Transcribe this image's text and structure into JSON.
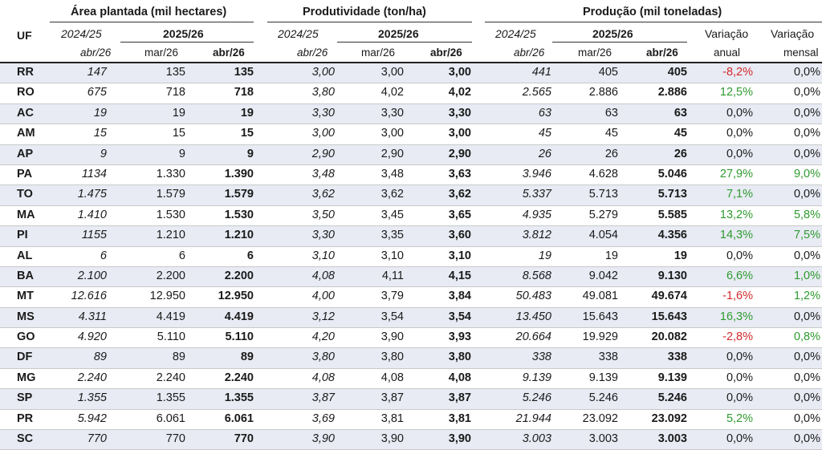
{
  "header": {
    "uf": "UF",
    "groups": {
      "area": "Área plantada (mil hectares)",
      "prod": "Produtividade (ton/ha)",
      "producao": "Produção (mil toneladas)"
    },
    "year_prev": "2024/25",
    "year_curr": "2025/26",
    "month_prev": "abr/26",
    "month_mar": "mar/26",
    "month_abr": "abr/26",
    "var_anual_1": "Variação",
    "var_anual_2": "anual",
    "var_mensal_1": "Variação",
    "var_mensal_2": "mensal"
  },
  "colors": {
    "negative": "#d22a2a",
    "positive": "#2e9a2e",
    "shade": "#e8ebf4"
  },
  "rows": [
    {
      "uf": "RR",
      "a1": "147",
      "a2": "135",
      "a3": "135",
      "p1": "3,00",
      "p2": "3,00",
      "p3": "3,00",
      "q1": "441",
      "q2": "405",
      "q3": "405",
      "va": "-8,2%",
      "vm": "0,0%",
      "vac": "neg",
      "vmc": ""
    },
    {
      "uf": "RO",
      "a1": "675",
      "a2": "718",
      "a3": "718",
      "p1": "3,80",
      "p2": "4,02",
      "p3": "4,02",
      "q1": "2.565",
      "q2": "2.886",
      "q3": "2.886",
      "va": "12,5%",
      "vm": "0,0%",
      "vac": "pos",
      "vmc": ""
    },
    {
      "uf": "AC",
      "a1": "19",
      "a2": "19",
      "a3": "19",
      "p1": "3,30",
      "p2": "3,30",
      "p3": "3,30",
      "q1": "63",
      "q2": "63",
      "q3": "63",
      "va": "0,0%",
      "vm": "0,0%",
      "vac": "",
      "vmc": ""
    },
    {
      "uf": "AM",
      "a1": "15",
      "a2": "15",
      "a3": "15",
      "p1": "3,00",
      "p2": "3,00",
      "p3": "3,00",
      "q1": "45",
      "q2": "45",
      "q3": "45",
      "va": "0,0%",
      "vm": "0,0%",
      "vac": "",
      "vmc": ""
    },
    {
      "uf": "AP",
      "a1": "9",
      "a2": "9",
      "a3": "9",
      "p1": "2,90",
      "p2": "2,90",
      "p3": "2,90",
      "q1": "26",
      "q2": "26",
      "q3": "26",
      "va": "0,0%",
      "vm": "0,0%",
      "vac": "",
      "vmc": ""
    },
    {
      "uf": "PA",
      "a1": "1134",
      "a2": "1.330",
      "a3": "1.390",
      "p1": "3,48",
      "p2": "3,48",
      "p3": "3,63",
      "q1": "3.946",
      "q2": "4.628",
      "q3": "5.046",
      "va": "27,9%",
      "vm": "9,0%",
      "vac": "pos",
      "vmc": "pos"
    },
    {
      "uf": "TO",
      "a1": "1.475",
      "a2": "1.579",
      "a3": "1.579",
      "p1": "3,62",
      "p2": "3,62",
      "p3": "3,62",
      "q1": "5.337",
      "q2": "5.713",
      "q3": "5.713",
      "va": "7,1%",
      "vm": "0,0%",
      "vac": "pos",
      "vmc": ""
    },
    {
      "uf": "MA",
      "a1": "1.410",
      "a2": "1.530",
      "a3": "1.530",
      "p1": "3,50",
      "p2": "3,45",
      "p3": "3,65",
      "q1": "4.935",
      "q2": "5.279",
      "q3": "5.585",
      "va": "13,2%",
      "vm": "5,8%",
      "vac": "pos",
      "vmc": "pos"
    },
    {
      "uf": "PI",
      "a1": "1155",
      "a2": "1.210",
      "a3": "1.210",
      "p1": "3,30",
      "p2": "3,35",
      "p3": "3,60",
      "q1": "3.812",
      "q2": "4.054",
      "q3": "4.356",
      "va": "14,3%",
      "vm": "7,5%",
      "vac": "pos",
      "vmc": "pos"
    },
    {
      "uf": "AL",
      "a1": "6",
      "a2": "6",
      "a3": "6",
      "p1": "3,10",
      "p2": "3,10",
      "p3": "3,10",
      "q1": "19",
      "q2": "19",
      "q3": "19",
      "va": "0,0%",
      "vm": "0,0%",
      "vac": "",
      "vmc": ""
    },
    {
      "uf": "BA",
      "a1": "2.100",
      "a2": "2.200",
      "a3": "2.200",
      "p1": "4,08",
      "p2": "4,11",
      "p3": "4,15",
      "q1": "8.568",
      "q2": "9.042",
      "q3": "9.130",
      "va": "6,6%",
      "vm": "1,0%",
      "vac": "pos",
      "vmc": "pos"
    },
    {
      "uf": "MT",
      "a1": "12.616",
      "a2": "12.950",
      "a3": "12.950",
      "p1": "4,00",
      "p2": "3,79",
      "p3": "3,84",
      "q1": "50.483",
      "q2": "49.081",
      "q3": "49.674",
      "va": "-1,6%",
      "vm": "1,2%",
      "vac": "neg",
      "vmc": "pos"
    },
    {
      "uf": "MS",
      "a1": "4.311",
      "a2": "4.419",
      "a3": "4.419",
      "p1": "3,12",
      "p2": "3,54",
      "p3": "3,54",
      "q1": "13.450",
      "q2": "15.643",
      "q3": "15.643",
      "va": "16,3%",
      "vm": "0,0%",
      "vac": "pos",
      "vmc": ""
    },
    {
      "uf": "GO",
      "a1": "4.920",
      "a2": "5.110",
      "a3": "5.110",
      "p1": "4,20",
      "p2": "3,90",
      "p3": "3,93",
      "q1": "20.664",
      "q2": "19.929",
      "q3": "20.082",
      "va": "-2,8%",
      "vm": "0,8%",
      "vac": "neg",
      "vmc": "pos"
    },
    {
      "uf": "DF",
      "a1": "89",
      "a2": "89",
      "a3": "89",
      "p1": "3,80",
      "p2": "3,80",
      "p3": "3,80",
      "q1": "338",
      "q2": "338",
      "q3": "338",
      "va": "0,0%",
      "vm": "0,0%",
      "vac": "",
      "vmc": ""
    },
    {
      "uf": "MG",
      "a1": "2.240",
      "a2": "2.240",
      "a3": "2.240",
      "p1": "4,08",
      "p2": "4,08",
      "p3": "4,08",
      "q1": "9.139",
      "q2": "9.139",
      "q3": "9.139",
      "va": "0,0%",
      "vm": "0,0%",
      "vac": "",
      "vmc": ""
    },
    {
      "uf": "SP",
      "a1": "1.355",
      "a2": "1.355",
      "a3": "1.355",
      "p1": "3,87",
      "p2": "3,87",
      "p3": "3,87",
      "q1": "5.246",
      "q2": "5.246",
      "q3": "5.246",
      "va": "0,0%",
      "vm": "0,0%",
      "vac": "",
      "vmc": ""
    },
    {
      "uf": "PR",
      "a1": "5.942",
      "a2": "6.061",
      "a3": "6.061",
      "p1": "3,69",
      "p2": "3,81",
      "p3": "3,81",
      "q1": "21.944",
      "q2": "23.092",
      "q3": "23.092",
      "va": "5,2%",
      "vm": "0,0%",
      "vac": "pos",
      "vmc": ""
    },
    {
      "uf": "SC",
      "a1": "770",
      "a2": "770",
      "a3": "770",
      "p1": "3,90",
      "p2": "3,90",
      "p3": "3,90",
      "q1": "3.003",
      "q2": "3.003",
      "q3": "3.003",
      "va": "0,0%",
      "vm": "0,0%",
      "vac": "",
      "vmc": ""
    }
  ]
}
